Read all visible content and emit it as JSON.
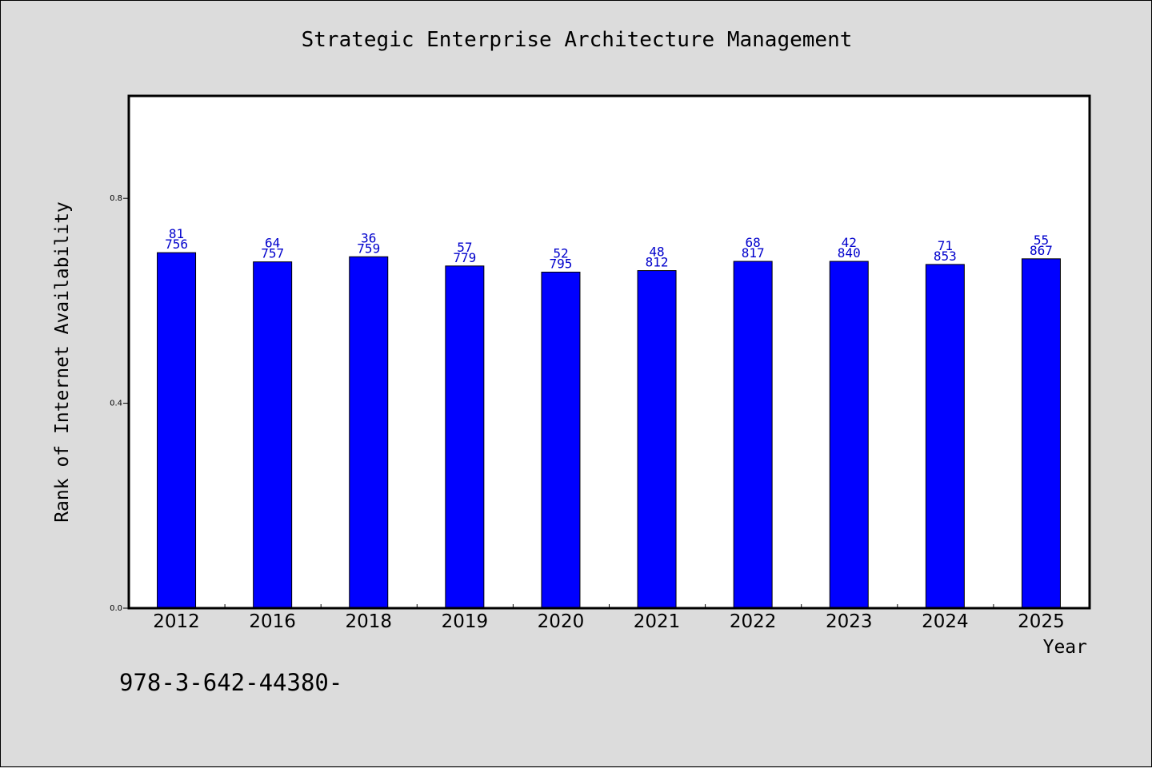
{
  "chart_data": {
    "type": "bar",
    "title": "Strategic Enterprise Architecture Management",
    "xlabel": "Year",
    "ylabel": "Rank of Internet Availability",
    "categories": [
      "2012",
      "2016",
      "2018",
      "2019",
      "2020",
      "2021",
      "2022",
      "2023",
      "2024",
      "2025"
    ],
    "values": [
      0.694,
      0.676,
      0.686,
      0.668,
      0.656,
      0.659,
      0.677,
      0.677,
      0.671,
      0.682
    ],
    "annotations_top": [
      "81",
      "64",
      "36",
      "57",
      "52",
      "48",
      "68",
      "42",
      "71",
      "55"
    ],
    "annotations_bottom": [
      "756",
      "757",
      "759",
      "779",
      "795",
      "812",
      "817",
      "840",
      "853",
      "867"
    ],
    "ylim": [
      0,
      1.0
    ],
    "yticks": [
      0.0,
      0.4,
      0.8
    ],
    "ytick_labels": [
      "0.0",
      "0.4",
      "0.8"
    ],
    "grid": false,
    "legend": "none",
    "bar_color": "#0000ff",
    "label_color": "#0000cc",
    "background_color": "#dcdcdc",
    "plot_background": "#ffffff"
  },
  "footnote": "978-3-642-44380-"
}
